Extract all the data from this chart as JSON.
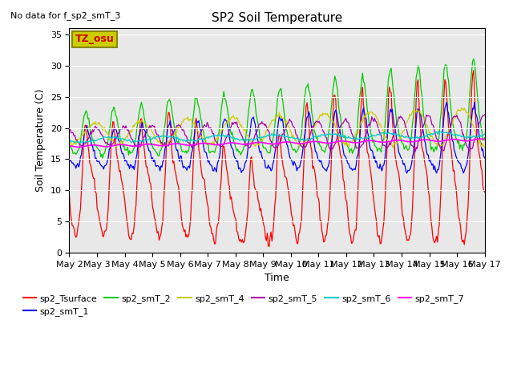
{
  "title": "SP2 Soil Temperature",
  "xlabel": "Time",
  "ylabel": "Soil Temperature (C)",
  "no_data_text": "No data for f_sp2_smT_3",
  "tz_label": "TZ_osu",
  "ylim": [
    0,
    36
  ],
  "yticks": [
    0,
    5,
    10,
    15,
    20,
    25,
    30,
    35
  ],
  "colors": {
    "sp2_Tsurface": "#ff0000",
    "sp2_smT_1": "#0000ff",
    "sp2_smT_2": "#00cc00",
    "sp2_smT_4": "#cccc00",
    "sp2_smT_5": "#aa00aa",
    "sp2_smT_6": "#00cccc",
    "sp2_smT_7": "#ff00ff"
  },
  "background_color": "#e8e8e8",
  "tz_box_facecolor": "#cccc00",
  "tz_text_color": "#cc0000",
  "tz_box_edgecolor": "#888800"
}
